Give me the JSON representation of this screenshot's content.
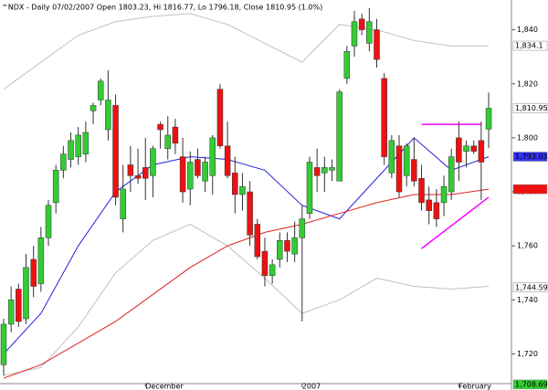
{
  "chart_data": {
    "type": "candlestick",
    "title": "^NDX - Daily 07/02/2007 Open 1803.23, Hi 1816.77, Lo 1796.18, Close 1810.95 (1.0%)",
    "categories": [
      null,
      null,
      null,
      null,
      null,
      null,
      null,
      null,
      null,
      null,
      null,
      null,
      null,
      null,
      null,
      null,
      null,
      null,
      null,
      "December",
      null,
      null,
      null,
      null,
      null,
      null,
      null,
      null,
      null,
      null,
      null,
      null,
      null,
      null,
      null,
      null,
      null,
      null,
      null,
      null,
      "2007",
      null,
      null,
      null,
      null,
      null,
      null,
      null,
      null,
      null,
      null,
      null,
      null,
      null,
      null,
      null,
      null,
      null,
      null,
      null,
      null,
      "February",
      null,
      null,
      null,
      null
    ],
    "open": [
      1716,
      1731,
      1744,
      1733,
      1755,
      1746,
      1763,
      1776,
      1788,
      1792,
      1793,
      1794,
      1810,
      1814,
      1803,
      1812,
      1770,
      1790,
      1786,
      1789,
      1786,
      1805,
      1796,
      1804,
      1793,
      1781,
      1792,
      1784,
      1786,
      1818,
      1797,
      1787,
      1779,
      1780,
      1768,
      1758,
      1749,
      1755,
      1762,
      1757,
      1763,
      1772,
      1789,
      1787,
      1788,
      1784,
      1822,
      1834,
      1844,
      1835,
      1840,
      1822,
      1787,
      1797,
      1786,
      1792,
      1785,
      1777,
      1776,
      1776,
      1780,
      1800,
      1795,
      1797,
      1799,
      1803.23
    ],
    "high": [
      1733,
      1745,
      1746,
      1757,
      1760,
      1767,
      1777,
      1790,
      1797,
      1802,
      1804,
      1806,
      1813,
      1822,
      1825,
      1816,
      1790,
      1797,
      1796,
      1800,
      1797,
      1806,
      1808,
      1807,
      1800,
      1795,
      1796,
      1793,
      1801,
      1820,
      1806,
      1793,
      1787,
      1784,
      1770,
      1763,
      1755,
      1765,
      1765,
      1769,
      1775,
      1793,
      1796,
      1793,
      1792,
      1818,
      1834,
      1847,
      1846,
      1848,
      1844,
      1824,
      1801,
      1801,
      1798,
      1800,
      1790,
      1782,
      1781,
      1786,
      1796,
      1806,
      1799,
      1799,
      1806,
      1816.77
    ],
    "low": [
      1712,
      1728,
      1730,
      1731,
      1741,
      1743,
      1760,
      1772,
      1785,
      1789,
      1790,
      1791,
      1805,
      1812,
      1799,
      1775,
      1765,
      1780,
      1783,
      1777,
      1778,
      1796,
      1792,
      1794,
      1776,
      1775,
      1785,
      1780,
      1779,
      1796,
      1785,
      1772,
      1773,
      1760,
      1755,
      1745,
      1746,
      1752,
      1754,
      1754,
      1732,
      1770,
      1780,
      1780,
      1784,
      1784,
      1820,
      1830,
      1838,
      1832,
      1826,
      1790,
      1785,
      1778,
      1782,
      1782,
      1773,
      1768,
      1767,
      1771,
      1777,
      1784,
      1789,
      1794,
      1777,
      1796.18
    ],
    "close": [
      1731,
      1740,
      1732,
      1752,
      1745,
      1763,
      1775,
      1788,
      1794,
      1799,
      1801,
      1802,
      1812,
      1821,
      1814,
      1778,
      1781,
      1786,
      1785,
      1785,
      1796,
      1803,
      1801,
      1798,
      1780,
      1791,
      1786,
      1791,
      1800,
      1797,
      1786,
      1779,
      1782,
      1764,
      1756,
      1749,
      1753,
      1762,
      1758,
      1763,
      1770,
      1791,
      1786,
      1789,
      1789,
      1817,
      1832,
      1843,
      1840,
      1843,
      1829,
      1793,
      1799,
      1780,
      1797,
      1784,
      1776,
      1773,
      1770,
      1782,
      1793,
      1791,
      1797,
      1795,
      1791,
      1810.95
    ],
    "up_color": "#33cc33",
    "down_color": "#ee1111",
    "overlays": [
      {
        "color": "#c0c0c0",
        "x": [
          0,
          5,
          10,
          15,
          20,
          25,
          30,
          35,
          40,
          45,
          50,
          55,
          60,
          65
        ],
        "values": [
          1818,
          1828,
          1838,
          1843,
          1845,
          1846,
          1842,
          1835,
          1828,
          1842,
          1840,
          1836,
          1834,
          1834
        ]
      },
      {
        "color": "#c0c0c0",
        "x": [
          0,
          5,
          10,
          15,
          20,
          25,
          30,
          35,
          40,
          45,
          50,
          55,
          60,
          65
        ],
        "values": [
          1712,
          1715,
          1730,
          1750,
          1762,
          1768,
          1760,
          1748,
          1735,
          1740,
          1748,
          1745,
          1744,
          1745
        ]
      },
      {
        "color": "#2222dd",
        "x": [
          0,
          5,
          10,
          15,
          20,
          25,
          30,
          35,
          40,
          45,
          50,
          55,
          60,
          65
        ],
        "values": [
          1720,
          1735,
          1760,
          1780,
          1790,
          1793,
          1792,
          1788,
          1775,
          1770,
          1785,
          1800,
          1788,
          1793
        ]
      },
      {
        "color": "#dd2222",
        "x": [
          0,
          5,
          10,
          15,
          20,
          25,
          30,
          35,
          40,
          45,
          50,
          55,
          60,
          65
        ],
        "values": [
          1711,
          1716,
          1724,
          1732,
          1742,
          1752,
          1760,
          1765,
          1768,
          1772,
          1776,
          1779,
          1779,
          1781
        ]
      },
      {
        "color": "#ff00ff",
        "x": [
          56,
          64
        ],
        "values": [
          1805,
          1805
        ]
      },
      {
        "color": "#ff00ff",
        "x": [
          56,
          65
        ],
        "values": [
          1759,
          1778
        ]
      }
    ],
    "ylim": [
      1709,
      1849
    ],
    "yticks": [
      {
        "value": 1720,
        "label": "1,720"
      },
      {
        "value": 1740,
        "label": "1,740"
      },
      {
        "value": 1760,
        "label": "1,760"
      },
      {
        "value": 1780,
        "label": "1,780"
      },
      {
        "value": 1800,
        "label": "1,800"
      },
      {
        "value": 1820,
        "label": "1,820"
      },
      {
        "value": 1840,
        "label": "1,840"
      }
    ],
    "axis_markers": [
      {
        "value": 1834.1,
        "label": "1,834.1",
        "color": "#ffffff"
      },
      {
        "value": 1810.95,
        "label": "1,810.95",
        "color": "#ffffff"
      },
      {
        "value": 1793.03,
        "label": "1,793.03",
        "color": "#3333ee"
      },
      {
        "value": 1781,
        "color": "#ee1111"
      },
      {
        "value": 1744.59,
        "label": "1,744.59",
        "color": "#ffffff"
      },
      {
        "value": 1708.69,
        "label": "1,708.69",
        "color": "#33cc33"
      }
    ]
  }
}
